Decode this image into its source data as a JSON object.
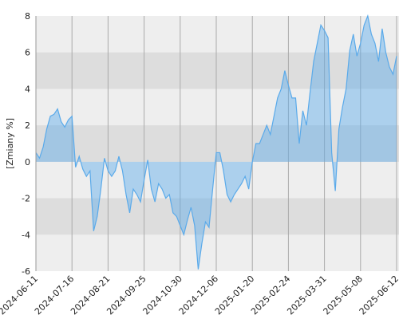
{
  "chart_data": {
    "type": "area",
    "ylabel": "[Zmiany %]",
    "categories": [
      "2024-06-11",
      null,
      null,
      null,
      null,
      null,
      null,
      null,
      null,
      null,
      "2024-07-16",
      null,
      null,
      null,
      null,
      null,
      null,
      null,
      null,
      null,
      "2024-08-21",
      null,
      null,
      null,
      null,
      null,
      null,
      null,
      null,
      null,
      "2024-09-25",
      null,
      null,
      null,
      null,
      null,
      null,
      null,
      null,
      null,
      "2024-10-30",
      null,
      null,
      null,
      null,
      null,
      null,
      null,
      null,
      null,
      "2024-12-06",
      null,
      null,
      null,
      null,
      null,
      null,
      null,
      null,
      null,
      "2025-01-20",
      null,
      null,
      null,
      null,
      null,
      null,
      null,
      null,
      null,
      "2025-02-24",
      null,
      null,
      null,
      null,
      null,
      null,
      null,
      null,
      null,
      "2025-03-31",
      null,
      null,
      null,
      null,
      null,
      null,
      null,
      null,
      null,
      "2025-05-08",
      null,
      null,
      null,
      null,
      null,
      null,
      null,
      null,
      null,
      "2025-06-12"
    ],
    "series": [
      {
        "color": "#5aaaea",
        "values": [
          0.5,
          0.2,
          0.8,
          1.8,
          2.5,
          2.6,
          2.9,
          2.2,
          1.9,
          2.3,
          2.5,
          -0.3,
          0.3,
          -0.4,
          -0.8,
          -0.5,
          -3.8,
          -3.0,
          -1.5,
          0.2,
          -0.5,
          -0.8,
          -0.5,
          0.3,
          -0.5,
          -1.8,
          -2.8,
          -1.5,
          -1.8,
          -2.2,
          -1.0,
          0.1,
          -1.5,
          -2.2,
          -1.2,
          -1.5,
          -2.0,
          -1.8,
          -2.8,
          -3.0,
          -3.5,
          -4.0,
          -3.2,
          -2.5,
          -3.5,
          -5.9,
          -4.5,
          -3.3,
          -3.6,
          -1.5,
          0.5,
          0.5,
          -0.5,
          -1.8,
          -2.2,
          -1.8,
          -1.5,
          -1.2,
          -0.8,
          -1.5,
          0.0,
          1.0,
          1.0,
          1.5,
          2.0,
          1.5,
          2.5,
          3.5,
          4.0,
          5.0,
          4.2,
          3.5,
          3.5,
          1.0,
          2.8,
          2.0,
          3.8,
          5.5,
          6.5,
          7.5,
          7.2,
          6.8,
          0.5,
          -1.6,
          1.8,
          3.0,
          4.0,
          6.1,
          7.0,
          5.8,
          6.5,
          7.5,
          8.0,
          7.0,
          6.5,
          5.5,
          7.3,
          6.0,
          5.2,
          4.8,
          5.8
        ]
      }
    ],
    "ylim": [
      -6,
      8
    ],
    "yticks": [
      -6,
      -4,
      -2,
      0,
      2,
      4,
      6,
      8
    ],
    "bands": true,
    "grid": true
  }
}
